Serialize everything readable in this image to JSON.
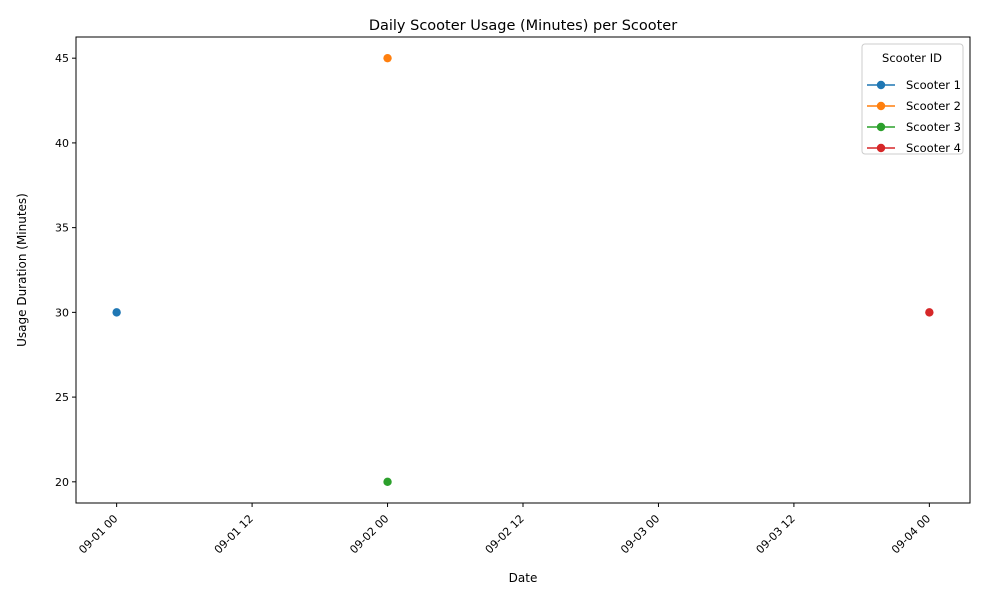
{
  "chart_data": {
    "type": "line",
    "title": "Daily Scooter Usage (Minutes) per Scooter",
    "xlabel": "Date",
    "ylabel": "Usage Duration (Minutes)",
    "x_ticks": [
      "09-01 00",
      "09-01 12",
      "09-02 00",
      "09-02 12",
      "09-03 00",
      "09-03 12",
      "09-04 00"
    ],
    "y_ticks": [
      "20",
      "25",
      "30",
      "35",
      "40",
      "45"
    ],
    "xlim": [
      "09-01 00",
      "09-04 00"
    ],
    "ylim": [
      20,
      45
    ],
    "grid": false,
    "legend": {
      "title": "Scooter ID",
      "placement": "top-right"
    },
    "series": [
      {
        "name": "Scooter 1",
        "color": "#1f77b4",
        "points": [
          {
            "x": "09-01 00",
            "y": 30
          }
        ]
      },
      {
        "name": "Scooter 2",
        "color": "#ff7f0e",
        "points": [
          {
            "x": "09-02 00",
            "y": 45
          }
        ]
      },
      {
        "name": "Scooter 3",
        "color": "#2ca02c",
        "points": [
          {
            "x": "09-02 00",
            "y": 20
          }
        ]
      },
      {
        "name": "Scooter 4",
        "color": "#d62728",
        "points": [
          {
            "x": "09-04 00",
            "y": 30
          }
        ]
      }
    ]
  }
}
